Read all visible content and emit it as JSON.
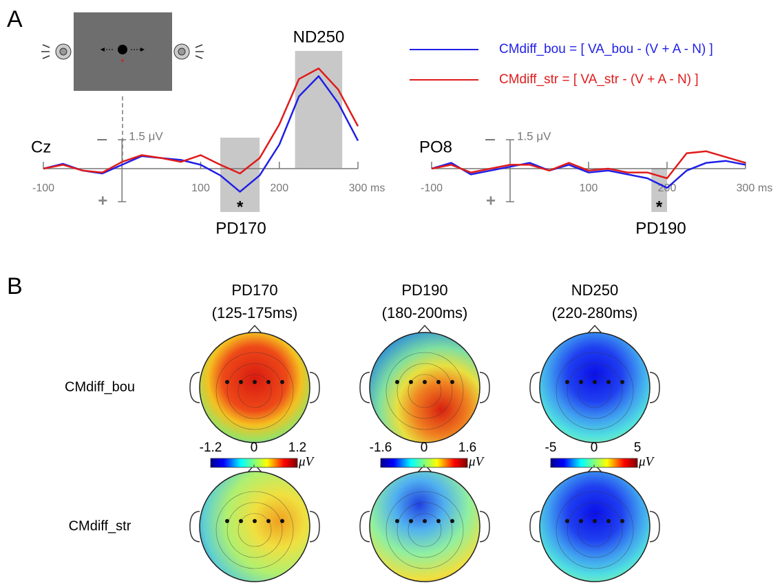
{
  "panel_labels": [
    "A",
    "B"
  ],
  "chart_data": [
    {
      "type": "line",
      "channel": "Cz",
      "x_unit": "ms",
      "scale_label": "1.5 μV",
      "scale_bar": -1.5,
      "polarity": "+",
      "x": [
        -100,
        -75,
        -50,
        -25,
        0,
        25,
        50,
        75,
        100,
        125,
        150,
        175,
        200,
        225,
        250,
        275,
        300
      ],
      "xlim": [
        -100,
        300
      ],
      "xticks": [
        -100,
        100,
        200,
        300
      ],
      "ylim": [
        2.5,
        -6
      ],
      "series": [
        {
          "name": "CMdiff_bou = [ VA_bou - (V + A - N) ]",
          "color": "#1f1fe6",
          "values": [
            0,
            -0.25,
            0.1,
            0.25,
            -0.2,
            -0.65,
            -0.55,
            -0.45,
            -0.2,
            0.35,
            1.2,
            0.35,
            -1.25,
            -3.75,
            -4.8,
            -3.4,
            -1.45
          ]
        },
        {
          "name": "CMdiff_str = [ VA_str - (V + A - N) ]",
          "color": "#e01b1b",
          "values": [
            0,
            -0.2,
            0.1,
            0.2,
            -0.35,
            -0.7,
            -0.55,
            -0.35,
            -0.7,
            -0.2,
            0.25,
            -0.55,
            -2.3,
            -4.65,
            -5.2,
            -4.1,
            -2.2
          ]
        }
      ],
      "windows": [
        {
          "label": "PD170",
          "range": [
            125,
            175
          ],
          "marker": "*"
        },
        {
          "label": "ND250",
          "range": [
            220,
            280
          ]
        }
      ]
    },
    {
      "type": "line",
      "channel": "PO8",
      "x_unit": "ms",
      "scale_label": "1.5 μV",
      "scale_bar": -1.5,
      "polarity": "+",
      "x": [
        -100,
        -75,
        -50,
        -25,
        0,
        25,
        50,
        75,
        100,
        125,
        150,
        175,
        200,
        225,
        250,
        275,
        300
      ],
      "xlim": [
        -100,
        300
      ],
      "xticks": [
        -100,
        100,
        200,
        300
      ],
      "ylim": [
        2.5,
        -6
      ],
      "series": [
        {
          "color": "#1f1fe6",
          "values": [
            0,
            -0.3,
            0.3,
            0.1,
            -0.1,
            -0.3,
            0.1,
            -0.2,
            0.2,
            0.1,
            0.3,
            0.5,
            1.0,
            0.1,
            -0.3,
            -0.4,
            -0.2
          ]
        },
        {
          "color": "#e01b1b",
          "values": [
            0,
            -0.2,
            0.2,
            0,
            -0.2,
            -0.2,
            0.1,
            -0.3,
            0.1,
            0,
            0.2,
            0.2,
            0.5,
            -0.8,
            -0.9,
            -0.6,
            -0.3
          ]
        }
      ],
      "windows": [
        {
          "label": "PD190",
          "range": [
            180,
            200
          ],
          "marker": "*"
        }
      ]
    }
  ],
  "topomaps": {
    "unit": "μV",
    "rows": [
      "CMdiff_bou",
      "CMdiff_str"
    ],
    "columns": [
      {
        "title": "PD170",
        "window": "(125-175ms)",
        "colorbar": [
          -1.2,
          0,
          1.2
        ]
      },
      {
        "title": "PD190",
        "window": "(180-200ms)",
        "colorbar": [
          -1.6,
          0,
          1.6
        ]
      },
      {
        "title": "ND250",
        "window": "(220-280ms)",
        "colorbar": [
          -5,
          0,
          5
        ]
      }
    ]
  }
}
